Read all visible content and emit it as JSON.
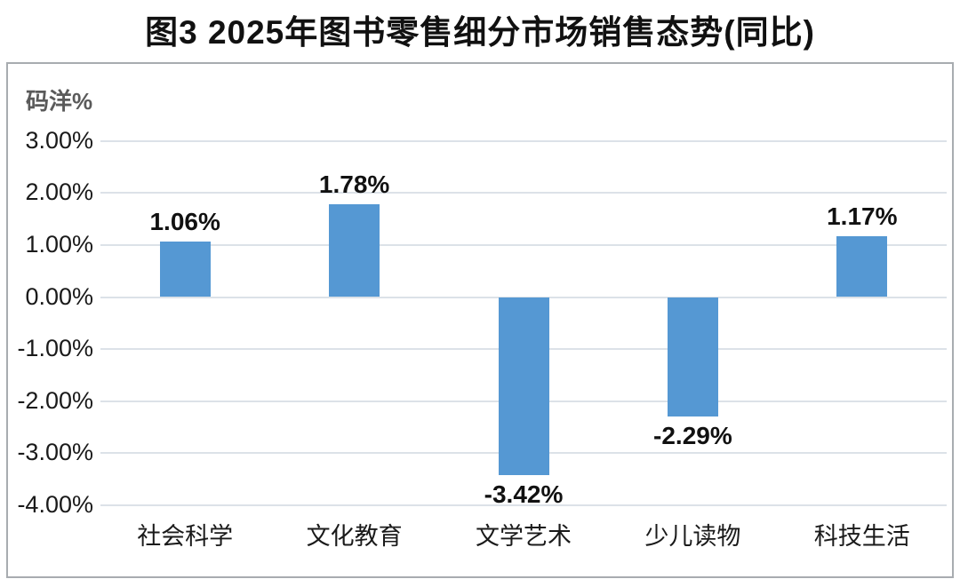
{
  "title": "图3 2025年图书零售细分市场销售态势(同比)",
  "chart_data": {
    "type": "bar",
    "title": "图3 2025年图书零售细分市场销售态势(同比)",
    "ylabel": "码洋%",
    "xlabel": "",
    "categories": [
      "社会科学",
      "文化教育",
      "文学艺术",
      "少儿读物",
      "科技生活"
    ],
    "values": [
      1.06,
      1.78,
      -3.42,
      -2.29,
      1.17
    ],
    "value_labels": [
      "1.06%",
      "1.78%",
      "-3.42%",
      "-2.29%",
      "1.17%"
    ],
    "y_ticks": [
      {
        "value": 3,
        "label": "3.00%"
      },
      {
        "value": 2,
        "label": "2.00%"
      },
      {
        "value": 1,
        "label": "1.00%"
      },
      {
        "value": 0,
        "label": "0.00%"
      },
      {
        "value": -1,
        "label": "-1.00%"
      },
      {
        "value": -2,
        "label": "-2.00%"
      },
      {
        "value": -3,
        "label": "-3.00%"
      },
      {
        "value": -4,
        "label": "-4.00%"
      }
    ],
    "ylim": [
      -4.3,
      3.5
    ],
    "grid": true,
    "legend": false,
    "colors": {
      "bar": "#5598d3",
      "gridline": "#dce2e8",
      "frame_border": "#a8acb0",
      "axis_unit_text": "#5a5a5a",
      "text": "#111111"
    }
  }
}
